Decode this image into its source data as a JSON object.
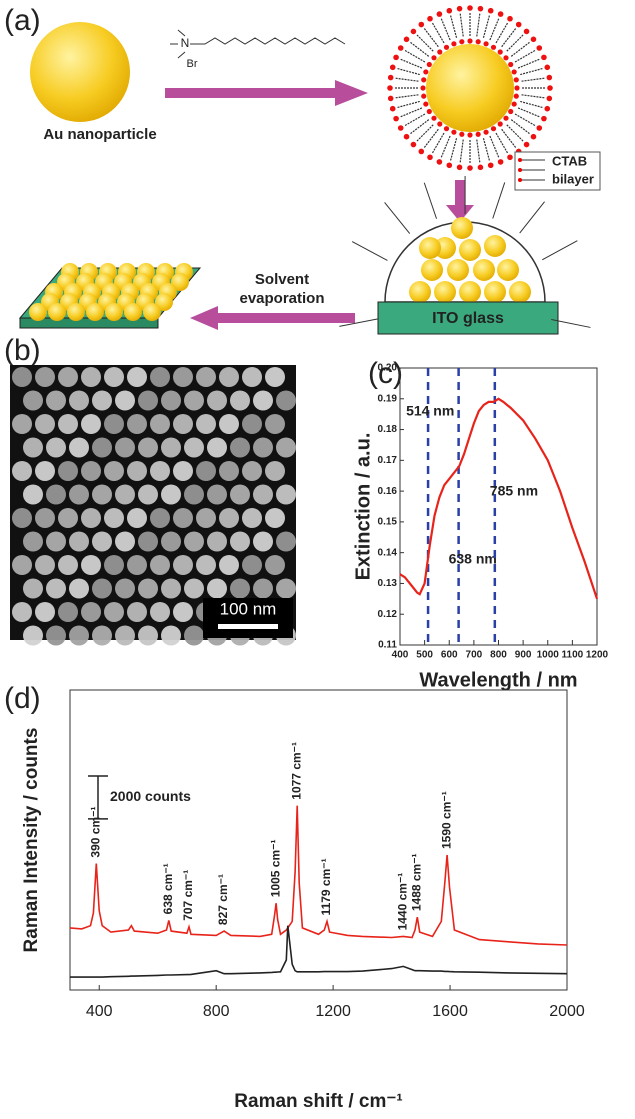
{
  "figure": {
    "panel_a": {
      "label": "(a)",
      "particle": "Au nanoparticle",
      "cation": "N",
      "anion": "Br",
      "legend": [
        "CTAB",
        "bilayer"
      ],
      "step": [
        "Solvent",
        "evaporation"
      ],
      "substrate": "ITO glass"
    },
    "panel_b": {
      "label": "(b)",
      "scale_bar": "100 nm"
    }
  },
  "chart_data": [
    {
      "type": "line",
      "panel_label": "(c)",
      "xlabel": "Wavelength / nm",
      "ylabel": "Extinction / a.u.",
      "x": [
        400,
        420,
        450,
        470,
        480,
        500,
        520,
        540,
        560,
        580,
        600,
        620,
        640,
        660,
        680,
        700,
        720,
        740,
        760,
        780,
        800,
        820,
        850,
        900,
        950,
        1000,
        1050,
        1100,
        1150,
        1200
      ],
      "series": [
        {
          "color": "#e8231a",
          "values": [
            0.133,
            0.132,
            0.129,
            0.127,
            0.1265,
            0.13,
            0.142,
            0.152,
            0.158,
            0.162,
            0.164,
            0.166,
            0.168,
            0.172,
            0.177,
            0.182,
            0.186,
            0.188,
            0.189,
            0.189,
            0.19,
            0.189,
            0.187,
            0.183,
            0.177,
            0.17,
            0.16,
            0.148,
            0.137,
            0.125
          ]
        }
      ],
      "xlim": [
        400,
        1200
      ],
      "xticks": [
        400,
        500,
        600,
        700,
        800,
        900,
        1000,
        1100,
        1200
      ],
      "ylim": [
        0.11,
        0.2
      ],
      "yticks": [
        0.11,
        0.12,
        0.13,
        0.14,
        0.15,
        0.16,
        0.17,
        0.18,
        0.19,
        {
          "value": 0.2,
          "label": "0.20"
        }
      ],
      "vlines": [
        {
          "x": 514,
          "label": "514 nm"
        },
        {
          "x": 638,
          "label": "638 nm"
        },
        {
          "x": 785,
          "label": "785 nm"
        }
      ],
      "vline_color": "#2b3fa8"
    },
    {
      "type": "line",
      "panel_label": "(d)",
      "xlabel": "Raman shift / cm⁻¹",
      "ylabel": "Raman Intensity / counts",
      "x": [
        300,
        340,
        370,
        380,
        390,
        400,
        410,
        440,
        500,
        510,
        520,
        600,
        630,
        638,
        646,
        700,
        707,
        714,
        800,
        827,
        850,
        950,
        990,
        1000,
        1005,
        1010,
        1020,
        1040,
        1045,
        1060,
        1070,
        1077,
        1084,
        1095,
        1150,
        1170,
        1179,
        1188,
        1250,
        1300,
        1400,
        1440,
        1470,
        1480,
        1488,
        1496,
        1540,
        1570,
        1582,
        1590,
        1598,
        1615,
        1700,
        1800,
        1900,
        2000
      ],
      "series": [
        {
          "color": "#e8231a",
          "values": [
            2900,
            2850,
            3000,
            3600,
            5900,
            3700,
            3000,
            2700,
            2800,
            3000,
            2750,
            2650,
            2800,
            3250,
            2750,
            2650,
            2950,
            2600,
            2550,
            2750,
            2550,
            2500,
            2600,
            3500,
            4050,
            3300,
            2600,
            2800,
            2900,
            3200,
            5500,
            8600,
            5000,
            2900,
            2600,
            2800,
            3200,
            2700,
            2550,
            2500,
            2450,
            2500,
            2450,
            2800,
            3400,
            2700,
            2500,
            3200,
            5000,
            6300,
            4800,
            2800,
            2350,
            2250,
            2150,
            2100
          ]
        },
        {
          "color": "#222222",
          "values": [
            600,
            600,
            600,
            600,
            600,
            600,
            600,
            620,
            640,
            650,
            650,
            680,
            700,
            700,
            700,
            720,
            720,
            730,
            900,
            760,
            760,
            800,
            820,
            830,
            830,
            840,
            850,
            1400,
            3000,
            1200,
            900,
            850,
            850,
            850,
            850,
            860,
            860,
            860,
            860,
            880,
            1000,
            1100,
            950,
            900,
            900,
            900,
            880,
            880,
            870,
            870,
            860,
            850,
            830,
            800,
            780,
            760
          ]
        }
      ],
      "xlim": [
        300,
        2000
      ],
      "xticks": [
        400,
        800,
        1200,
        1600,
        2000
      ],
      "ylim": [
        0,
        14000
      ],
      "scale_bar": {
        "value": 2000,
        "label": "2000 counts"
      },
      "peaks": [
        {
          "x": 390,
          "label": "390 cm⁻¹"
        },
        {
          "x": 638,
          "label": "638 cm⁻¹"
        },
        {
          "x": 707,
          "label": "707 cm⁻¹"
        },
        {
          "x": 827,
          "label": "827 cm⁻¹"
        },
        {
          "x": 1005,
          "label": "1005 cm⁻¹"
        },
        {
          "x": 1077,
          "label": "1077 cm⁻¹"
        },
        {
          "x": 1179,
          "label": "1179 cm⁻¹"
        },
        {
          "x": 1440,
          "label": "1440 cm⁻¹"
        },
        {
          "x": 1488,
          "label": "1488 cm⁻¹"
        },
        {
          "x": 1590,
          "label": "1590 cm⁻¹"
        }
      ]
    }
  ]
}
